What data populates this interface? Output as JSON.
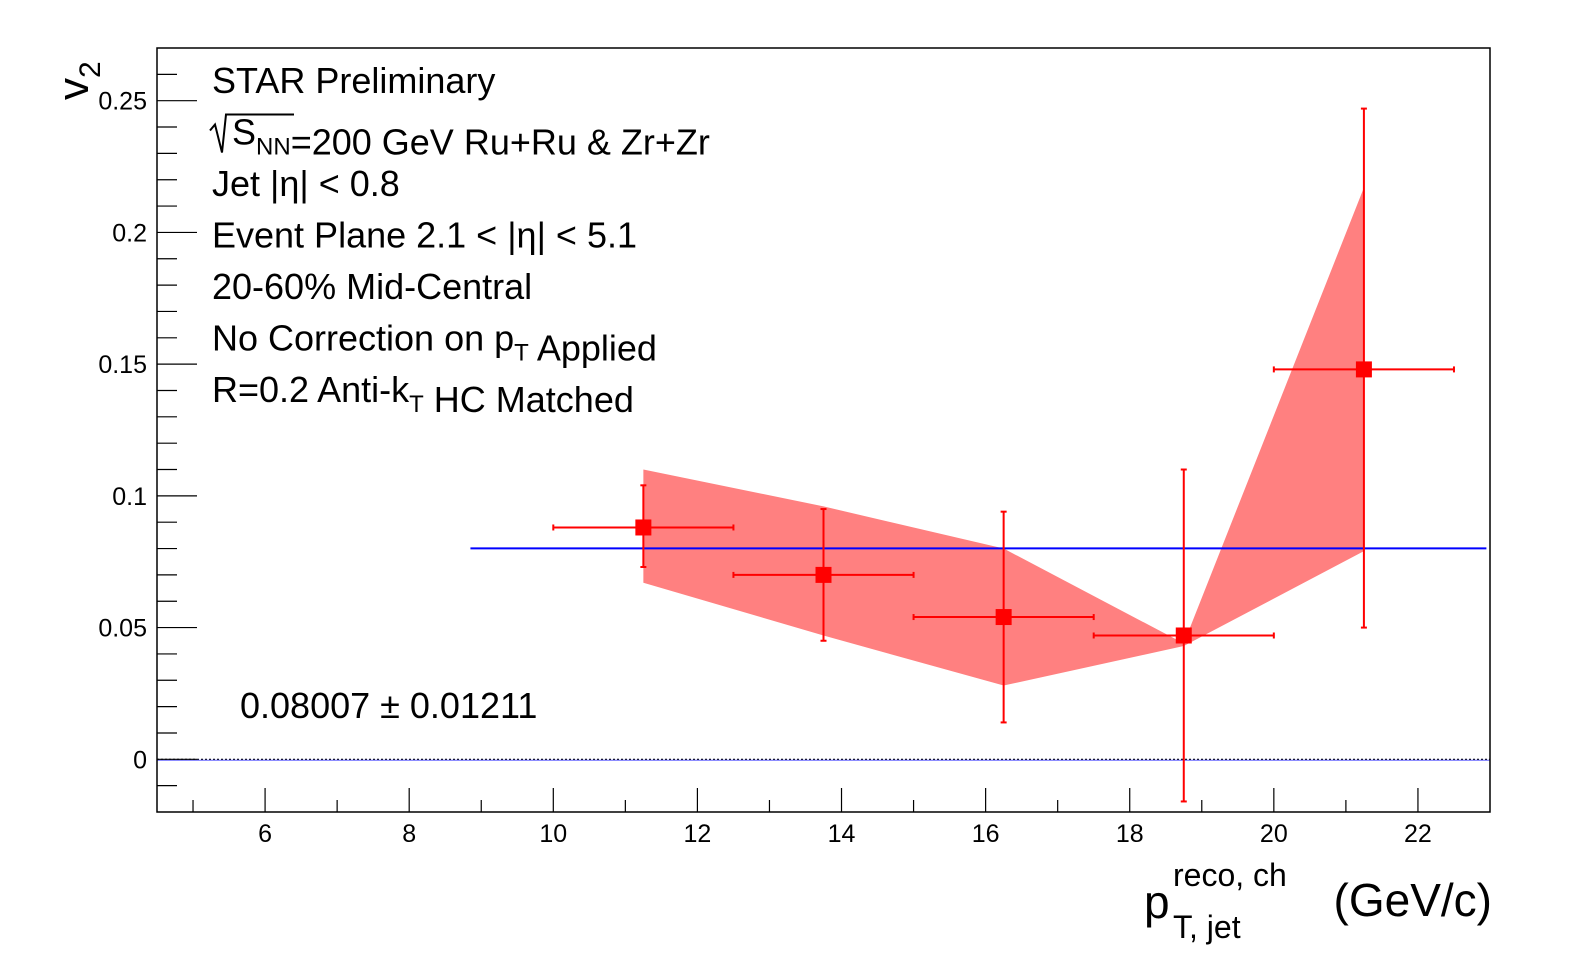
{
  "chart_data": {
    "type": "scatter",
    "xlim": [
      4.5,
      23.0
    ],
    "ylim": [
      -0.02,
      0.27
    ],
    "xticks": [
      6,
      8,
      10,
      12,
      14,
      16,
      18,
      20,
      22
    ],
    "yticks": [
      0,
      0.05,
      0.1,
      0.15,
      0.2,
      0.25
    ],
    "xtick_labels": [
      "6",
      "8",
      "10",
      "12",
      "14",
      "16",
      "18",
      "20",
      "22"
    ],
    "ytick_labels": [
      "0",
      "0.05",
      "0.1",
      "0.15",
      "0.2",
      "0.25"
    ],
    "xlabel": {
      "base": "p",
      "sup": "reco, ch",
      "sub": "T, jet",
      "unit": "(GeV/c)"
    },
    "ylabel": {
      "base": "v",
      "sub": "2"
    },
    "annotations": [
      {
        "parts": [
          {
            "t": "STAR Preliminary"
          }
        ]
      },
      {
        "parts": [
          {
            "t": "S",
            "sqrt": true
          },
          {
            "t": "NN",
            "sub": true
          },
          {
            "t": "=200 GeV Ru+Ru & Zr+Zr"
          }
        ]
      },
      {
        "parts": [
          {
            "t": "Jet |η| < 0.8"
          }
        ]
      },
      {
        "parts": [
          {
            "t": "Event Plane 2.1 < |η| < 5.1"
          }
        ]
      },
      {
        "parts": [
          {
            "t": "20-60% Mid-Central"
          }
        ]
      },
      {
        "parts": [
          {
            "t": "No Correction on p"
          },
          {
            "t": "T",
            "sub": true
          },
          {
            "t": " Applied"
          }
        ]
      },
      {
        "parts": [
          {
            "t": "R=0.2 Anti-k"
          },
          {
            "t": "T",
            "sub": true
          },
          {
            "t": " HC Matched"
          }
        ]
      }
    ],
    "fit_label": "0.08007 ± 0.01211",
    "series": [
      {
        "color": "#ff0000",
        "points": [
          {
            "x": 11.25,
            "y": 0.088,
            "xerr": 1.25,
            "ylo": 0.073,
            "yhi": 0.104
          },
          {
            "x": 13.75,
            "y": 0.07,
            "xerr": 1.25,
            "ylo": 0.045,
            "yhi": 0.095
          },
          {
            "x": 16.25,
            "y": 0.054,
            "xerr": 1.25,
            "ylo": 0.014,
            "yhi": 0.094
          },
          {
            "x": 18.75,
            "y": 0.047,
            "xerr": 1.25,
            "ylo": -0.016,
            "yhi": 0.11
          },
          {
            "x": 21.25,
            "y": 0.148,
            "xerr": 1.25,
            "ylo": 0.05,
            "yhi": 0.247
          }
        ]
      }
    ],
    "systematic_band": {
      "color": "#ff8080",
      "x": [
        11.25,
        13.75,
        16.25,
        18.75,
        21.25
      ],
      "upper": [
        0.11,
        0.096,
        0.08,
        0.044,
        0.217
      ],
      "lower": [
        0.067,
        0.047,
        0.028,
        0.043,
        0.079
      ]
    },
    "fit_line": {
      "color": "#0000ff",
      "y": 0.08007,
      "x_start": 8.85,
      "x_end": 22.95
    },
    "zero_line": {
      "y": 0,
      "style": "dotted"
    },
    "grid": false
  }
}
